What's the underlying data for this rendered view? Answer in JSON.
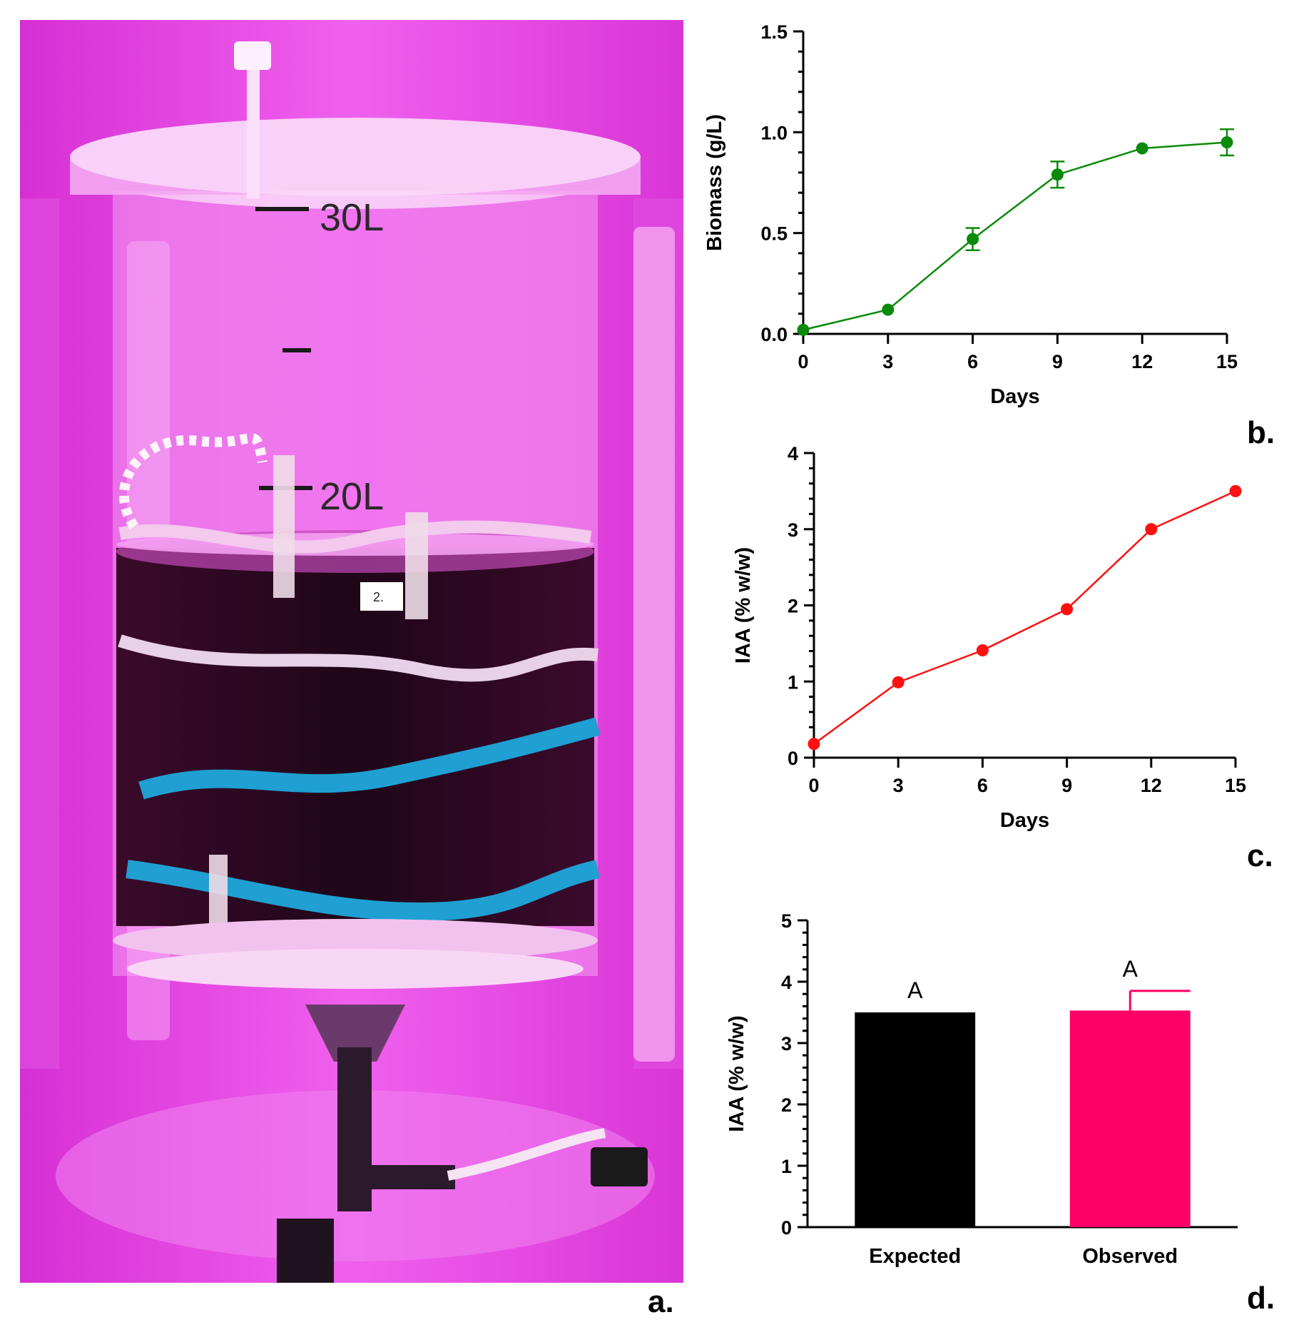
{
  "panel_labels": {
    "a": "a.",
    "b": "b.",
    "c": "c.",
    "d": "d."
  },
  "photo": {
    "marks": [
      "30L",
      "20L"
    ],
    "sticker": "2.",
    "colors": {
      "light": "#e83ee6",
      "glow": "#f25bf0",
      "culture": "#2a0a20",
      "tape_blue": "#1f9fd2"
    }
  },
  "chart_data": [
    {
      "type": "line",
      "x": [
        0,
        3,
        6,
        9,
        12,
        15
      ],
      "series": [
        {
          "values": [
            0.02,
            0.12,
            0.47,
            0.79,
            0.92,
            0.95
          ],
          "error": [
            0,
            0,
            0.055,
            0.065,
            0,
            0.065
          ],
          "color": "#0a8a0a"
        }
      ],
      "xlabel": "Days",
      "ylabel": "Biomass (g/L)",
      "xticks": [
        "0",
        "3",
        "6",
        "9",
        "12",
        "15"
      ],
      "yticks": [
        "0.0",
        "0.5",
        "1.0",
        "1.5"
      ],
      "xlim": [
        0,
        15
      ],
      "ylim": [
        0,
        1.5
      ],
      "grid": false
    },
    {
      "type": "line",
      "x": [
        0,
        3,
        6,
        9,
        12,
        15
      ],
      "series": [
        {
          "values": [
            0.18,
            0.99,
            1.41,
            1.95,
            3.0,
            3.5
          ],
          "color": "#ff1010"
        }
      ],
      "xlabel": "Days",
      "ylabel": "IAA (% w/w)",
      "xticks": [
        "0",
        "3",
        "6",
        "9",
        "12",
        "15"
      ],
      "yticks": [
        "0",
        "1",
        "2",
        "3",
        "4"
      ],
      "xlim": [
        0,
        15
      ],
      "ylim": [
        0,
        4
      ],
      "grid": false
    },
    {
      "type": "bar",
      "categories": [
        "Expected",
        "Observed"
      ],
      "values": [
        3.5,
        3.53
      ],
      "error": [
        0,
        0.32
      ],
      "letters": [
        "A",
        "A"
      ],
      "colors": [
        "#000000",
        "#ff0066"
      ],
      "ylabel": "IAA (% w/w)",
      "yticks": [
        "0",
        "1",
        "2",
        "3",
        "4",
        "5"
      ],
      "ylim": [
        0,
        5
      ],
      "grid": false
    }
  ]
}
